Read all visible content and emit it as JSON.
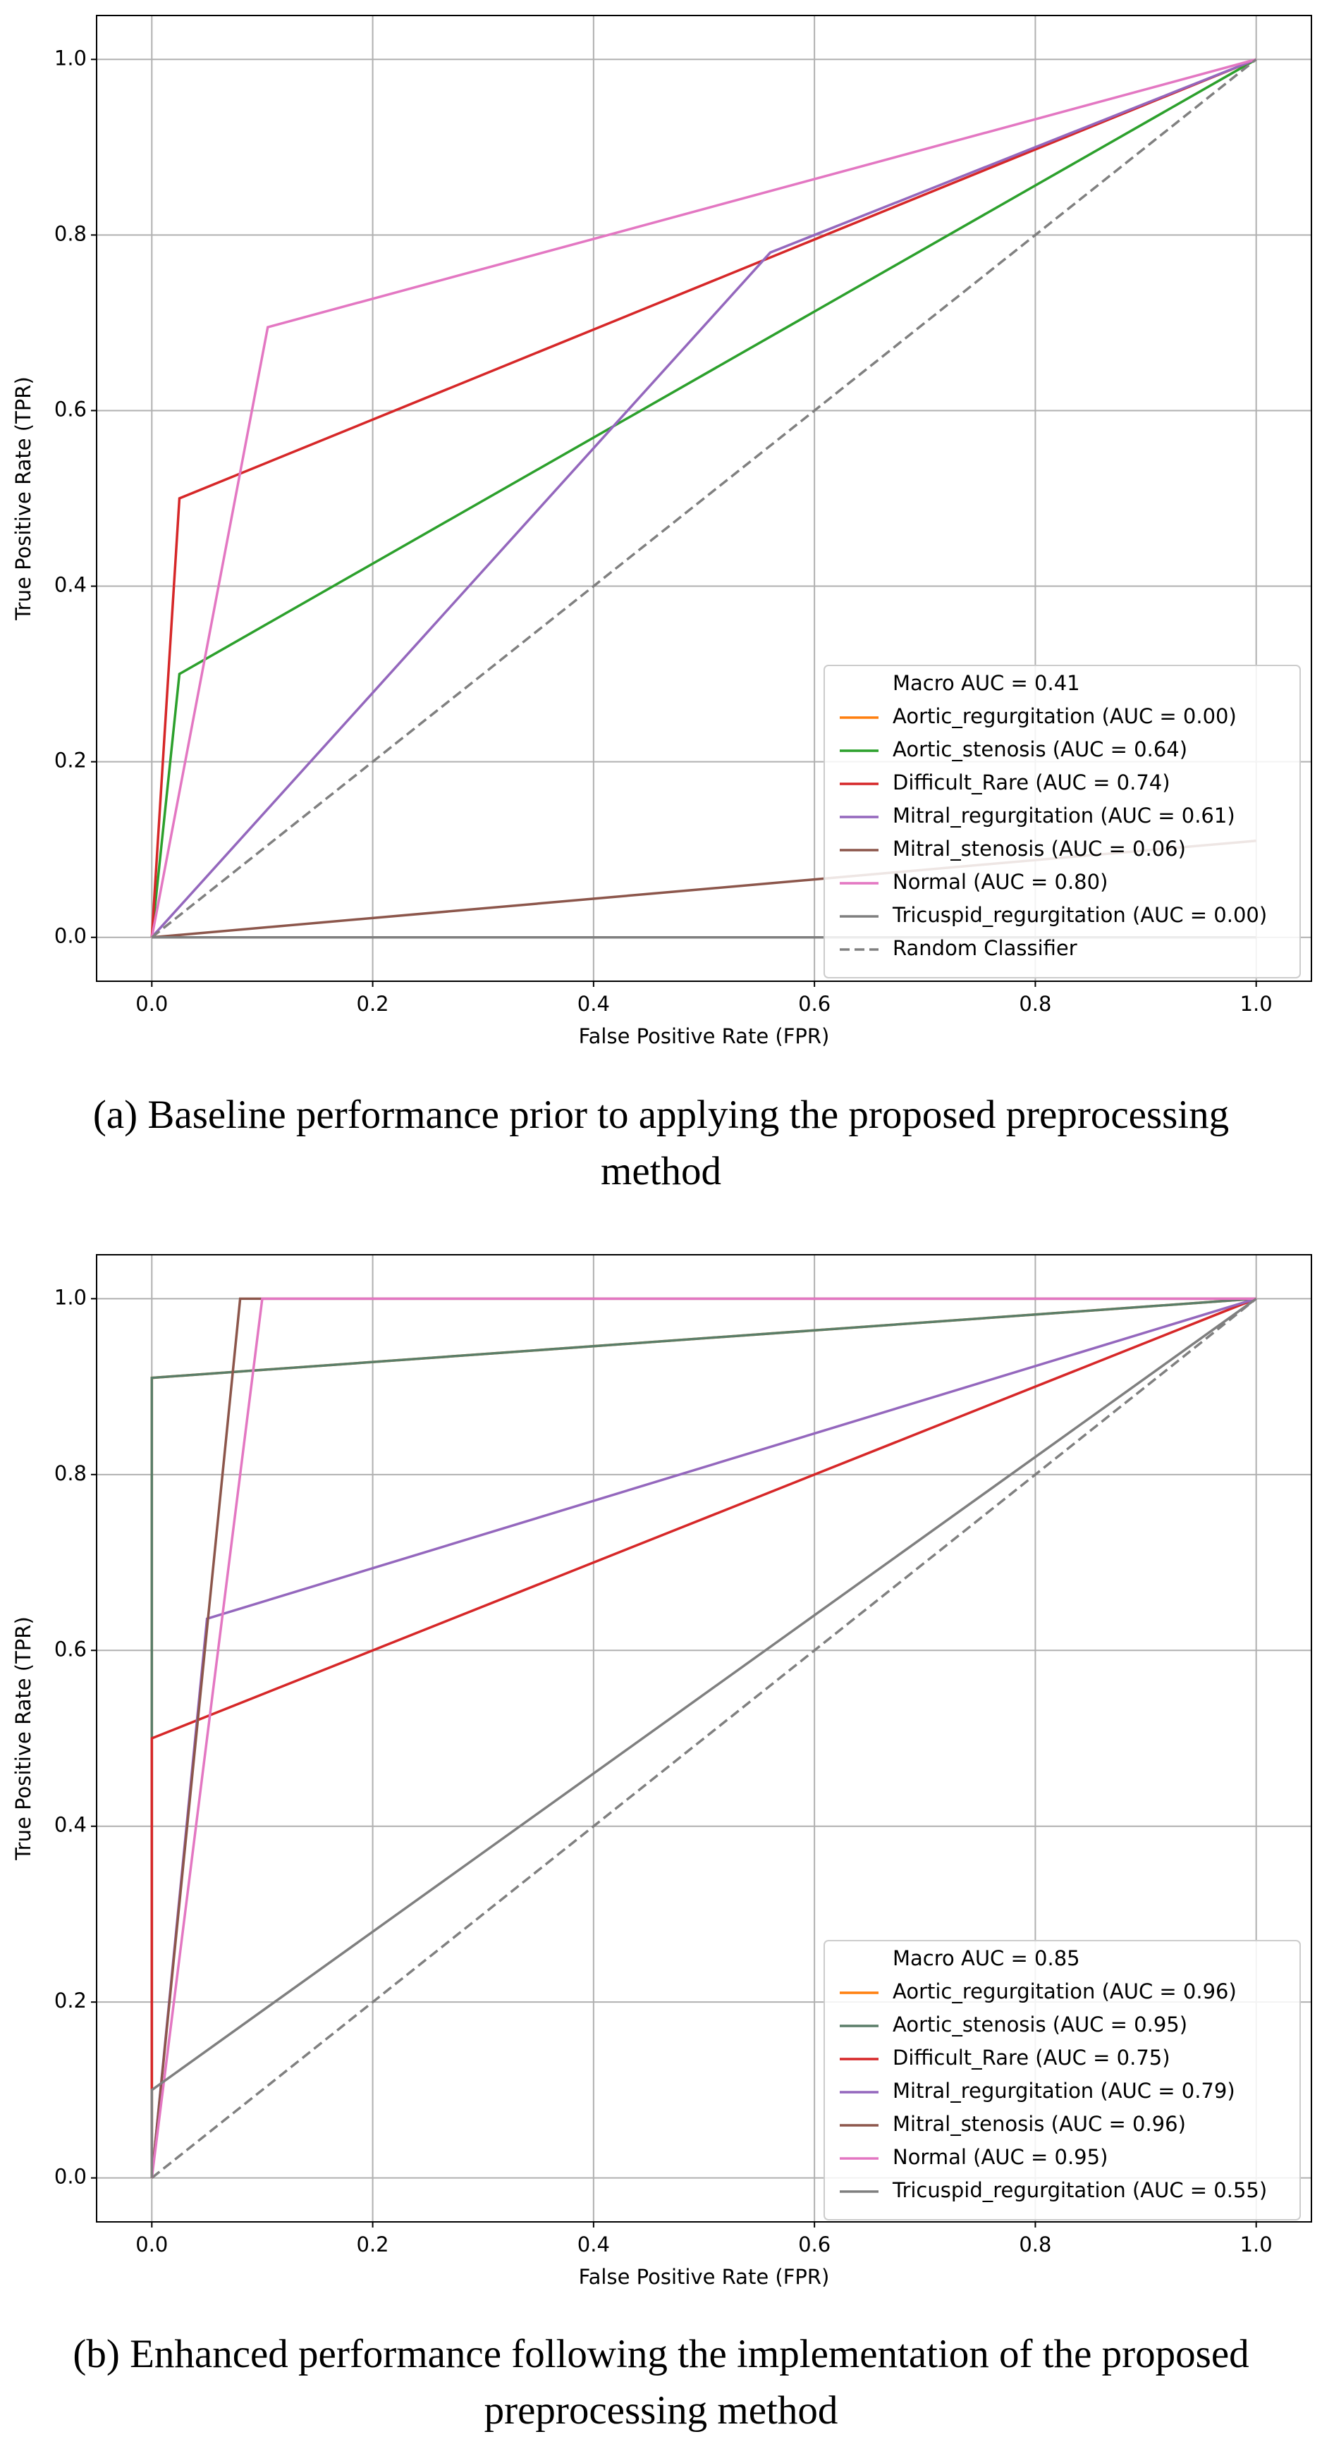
{
  "chart_data": [
    {
      "type": "line",
      "caption": "(a) Baseline performance prior to applying the proposed preprocessing method",
      "xlabel": "False Positive Rate (FPR)",
      "ylabel": "True Positive Rate (TPR)",
      "xlim": [
        -0.05,
        1.05
      ],
      "ylim": [
        -0.05,
        1.05
      ],
      "xticks": [
        {
          "value": 0,
          "label": "0.0"
        },
        0.2,
        0.4,
        0.6,
        0.8,
        {
          "value": 1,
          "label": "1.0"
        }
      ],
      "yticks": [
        {
          "value": 0,
          "label": "0.0"
        },
        0.2,
        0.4,
        0.6,
        0.8,
        {
          "value": 1,
          "label": "1.0"
        }
      ],
      "grid": true,
      "legend": "lower right",
      "legend_note": "Macro AUC = 0.41",
      "series": [
        {
          "name": "Aortic_regurgitation (AUC = 0.00)",
          "color": "#ff7f0e",
          "x": [
            0,
            1
          ],
          "values": [
            0,
            0
          ]
        },
        {
          "name": "Aortic_stenosis (AUC = 0.64)",
          "color": "#2ca02c",
          "x": [
            0,
            0.025,
            1
          ],
          "values": [
            0,
            0.3,
            1
          ]
        },
        {
          "name": "Difficult_Rare (AUC = 0.74)",
          "color": "#d62728",
          "x": [
            0,
            0.025,
            1
          ],
          "values": [
            0,
            0.5,
            1
          ]
        },
        {
          "name": "Mitral_regurgitation (AUC = 0.61)",
          "color": "#9467bd",
          "x": [
            0,
            0.56,
            1
          ],
          "values": [
            0,
            0.78,
            1
          ]
        },
        {
          "name": "Mitral_stenosis (AUC = 0.06)",
          "color": "#8c564b",
          "x": [
            0,
            1
          ],
          "values": [
            0,
            0.11
          ]
        },
        {
          "name": "Normal (AUC = 0.80)",
          "color": "#e377c2",
          "x": [
            0,
            0.105,
            1
          ],
          "values": [
            0,
            0.695,
            1
          ]
        },
        {
          "name": "Tricuspid_regurgitation (AUC = 0.00)",
          "color": "#7f7f7f",
          "x": [
            0,
            1
          ],
          "values": [
            0,
            0
          ]
        },
        {
          "name": "Random Classifier",
          "color": "#808080",
          "dash": true,
          "x": [
            0,
            1
          ],
          "values": [
            0,
            1
          ]
        }
      ]
    },
    {
      "type": "line",
      "caption": "(b) Enhanced performance following the implementation of the proposed preprocessing method",
      "xlabel": "False Positive Rate (FPR)",
      "ylabel": "True Positive Rate (TPR)",
      "xlim": [
        -0.05,
        1.05
      ],
      "ylim": [
        -0.05,
        1.05
      ],
      "xticks": [
        {
          "value": 0,
          "label": "0.0"
        },
        0.2,
        0.4,
        0.6,
        0.8,
        {
          "value": 1,
          "label": "1.0"
        }
      ],
      "yticks": [
        {
          "value": 0,
          "label": "0.0"
        },
        0.2,
        0.4,
        0.6,
        0.8,
        {
          "value": 1,
          "label": "1.0"
        }
      ],
      "grid": true,
      "legend": "lower right",
      "legend_note": "Macro AUC = 0.85",
      "series": [
        {
          "color": "#808080",
          "dash": true,
          "x": [
            0,
            1
          ],
          "values": [
            0,
            1
          ]
        },
        {
          "name": "Aortic_regurgitation (AUC = 0.96)",
          "color": "#ff7f0e",
          "x": [
            0,
            0,
            1
          ],
          "values": [
            0,
            0.91,
            1
          ]
        },
        {
          "name": "Aortic_stenosis (AUC = 0.95)",
          "color": "#5a7d68",
          "x": [
            0,
            0,
            1
          ],
          "values": [
            0,
            0.91,
            1
          ]
        },
        {
          "name": "Difficult_Rare (AUC = 0.75)",
          "color": "#d62728",
          "x": [
            0,
            0,
            1
          ],
          "values": [
            0,
            0.5,
            1
          ]
        },
        {
          "name": "Mitral_regurgitation (AUC = 0.79)",
          "color": "#9467bd",
          "x": [
            0,
            0.05,
            1
          ],
          "values": [
            0,
            0.636,
            1
          ]
        },
        {
          "name": "Mitral_stenosis (AUC = 0.96)",
          "color": "#8c564b",
          "x": [
            0,
            0.08,
            1
          ],
          "values": [
            0,
            1,
            1
          ]
        },
        {
          "name": "Normal (AUC = 0.95)",
          "color": "#e377c2",
          "x": [
            0,
            0.1,
            1
          ],
          "values": [
            0,
            1,
            1
          ]
        },
        {
          "name": "Tricuspid_regurgitation (AUC = 0.55)",
          "color": "#7f7f7f",
          "x": [
            0,
            0,
            1
          ],
          "values": [
            0,
            0.1,
            1
          ]
        }
      ]
    }
  ]
}
